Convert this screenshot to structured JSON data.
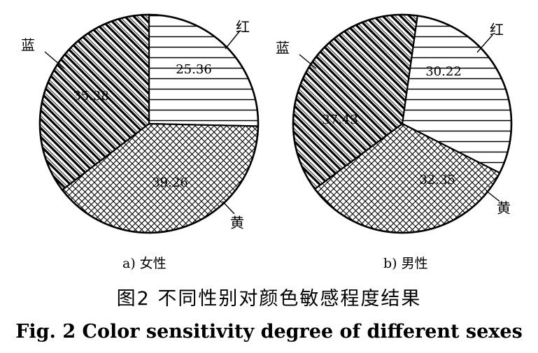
{
  "chart_data": [
    {
      "type": "pie",
      "subtitle": "a) 女性",
      "slices": [
        {
          "label": "红",
          "value": 25.36,
          "value_label": "25.36",
          "pattern": "horizontal-lines"
        },
        {
          "label": "黄",
          "value": 39.26,
          "value_label": "39.26",
          "pattern": "crosshatch"
        },
        {
          "label": "蓝",
          "value": 35.38,
          "value_label": "35.38",
          "pattern": "diagonal-stripes"
        }
      ]
    },
    {
      "type": "pie",
      "subtitle": "b) 男性",
      "slices": [
        {
          "label": "红",
          "value": 30.22,
          "value_label": "30.22",
          "pattern": "horizontal-lines"
        },
        {
          "label": "黄",
          "value": 32.35,
          "value_label": "32.35",
          "pattern": "crosshatch"
        },
        {
          "label": "蓝",
          "value": 37.43,
          "value_label": "37.43",
          "pattern": "diagonal-stripes"
        }
      ]
    }
  ],
  "caption": {
    "zh": "图2  不同性别对颜色敏感程度结果",
    "en": "Fig. 2  Color sensitivity degree of different sexes"
  },
  "colors": {
    "ink": "#000000",
    "background": "#ffffff"
  }
}
